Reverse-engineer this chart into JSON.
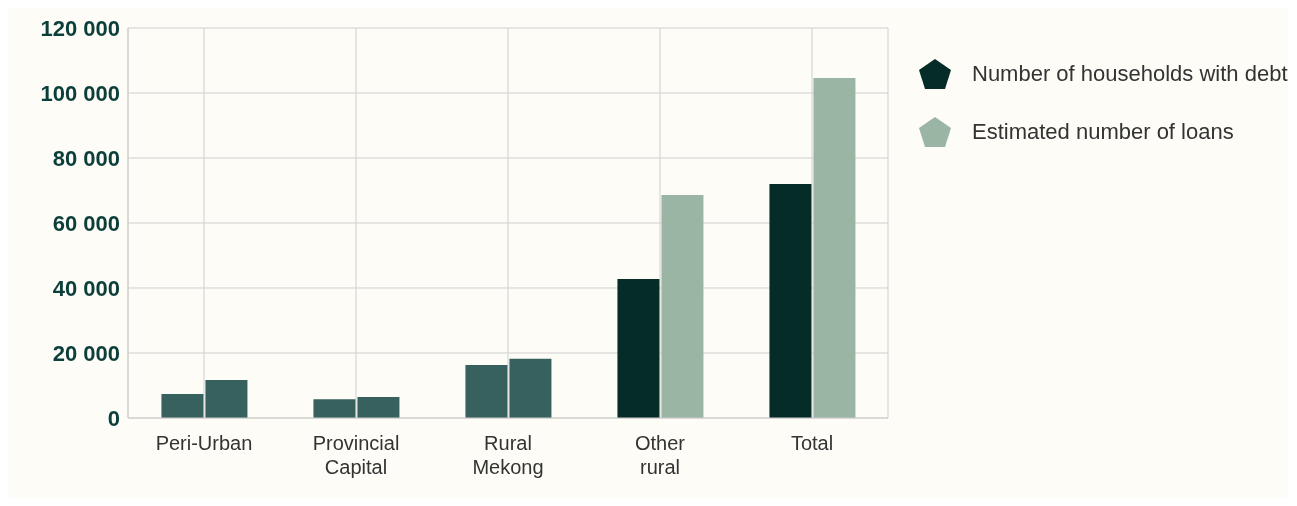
{
  "chart_data": {
    "type": "bar",
    "categories": [
      "Peri-Urban",
      "Provincial Capital",
      "Rural Mekong",
      "Other rural",
      "Total"
    ],
    "series": [
      {
        "name": "Number of households with debt",
        "color": "#062c28",
        "colors": [
          "#36615f",
          "#36615f",
          "#36615f",
          "#062c28",
          "#062c28"
        ],
        "values": [
          7400,
          5800,
          16300,
          42800,
          72000
        ]
      },
      {
        "name": "Estimated number of loans",
        "color": "#9bb5a5",
        "colors": [
          "#36615f",
          "#36615f",
          "#36615f",
          "#9bb5a5",
          "#9bb5a5"
        ],
        "values": [
          11700,
          6500,
          18200,
          68600,
          104600
        ]
      }
    ],
    "ylim": [
      0,
      120000
    ],
    "yticks": [
      0,
      {
        "value": 20000,
        "label": "20 000"
      },
      {
        "value": 40000,
        "label": "40 000"
      },
      {
        "value": 60000,
        "label": "60 000"
      },
      {
        "value": 80000,
        "label": "80 000"
      },
      {
        "value": 100000,
        "label": "100 000"
      },
      {
        "value": 120000,
        "label": "120 000"
      }
    ],
    "grid": true,
    "legend": "right"
  }
}
